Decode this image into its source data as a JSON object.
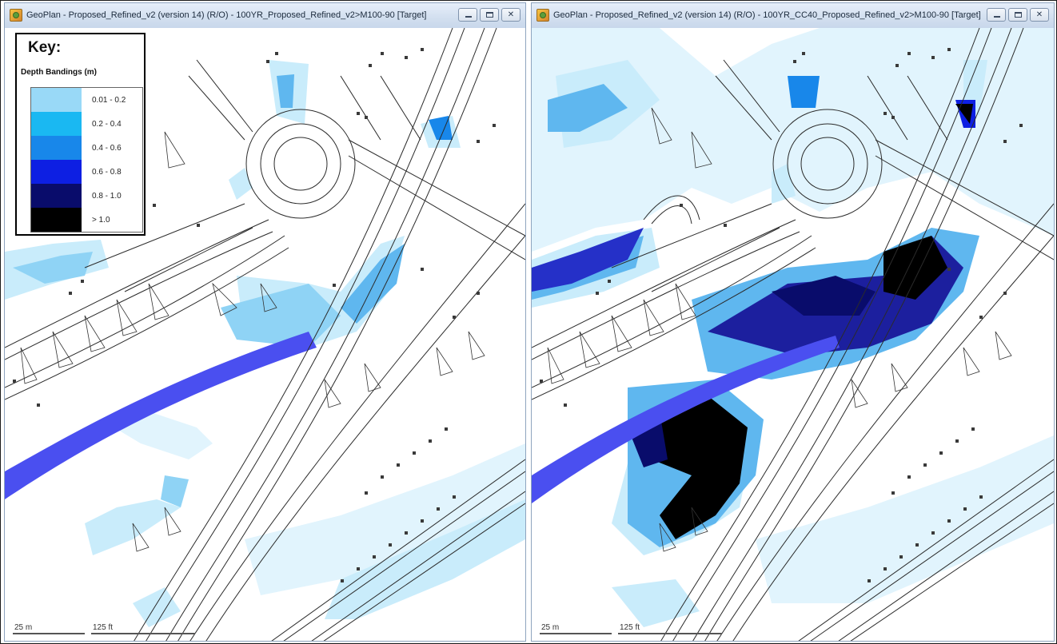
{
  "windows": [
    {
      "title": "GeoPlan - Proposed_Refined_v2 (version 14) (R/O) - 100YR_Proposed_Refined_v2>M100-90  [Target]",
      "scale_m": "25 m",
      "scale_ft": "125 ft"
    },
    {
      "title": "GeoPlan - Proposed_Refined_v2 (version 14) (R/O) - 100YR_CC40_Proposed_Refined_v2>M100-90  [Target]",
      "scale_m": "25 m",
      "scale_ft": "125 ft"
    }
  ],
  "window_controls": {
    "minimize_icon": "minimize-icon",
    "maximize_icon": "maximize-icon",
    "close_glyph": "✕"
  },
  "key": {
    "title": "Key:",
    "subtitle": "Depth Bandings (m)",
    "bands": [
      {
        "label": "0.01 - 0.2",
        "color": "#99d9f7"
      },
      {
        "label": "0.2 - 0.4",
        "color": "#1ab8f2"
      },
      {
        "label": "0.4 - 0.6",
        "color": "#1887ea"
      },
      {
        "label": "0.6 - 0.8",
        "color": "#0d1fe3"
      },
      {
        "label": "0.8 - 1.0",
        "color": "#090c6b"
      },
      {
        "label": "> 1.0",
        "color": "#000000"
      }
    ]
  },
  "colors": {
    "flood_light": "#c9ecfb",
    "flood_mid": "#8fd3f5",
    "channel": "#4a4ff0",
    "road_lines": "#2b2b2b",
    "node": "#3a3a3a"
  }
}
